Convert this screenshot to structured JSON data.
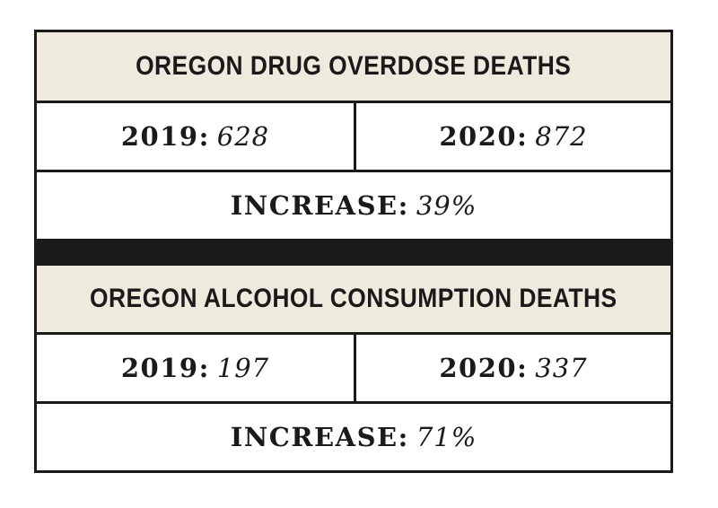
{
  "chart_data": [
    {
      "type": "table",
      "title": "OREGON DRUG OVERDOSE DEATHS",
      "rows": [
        {
          "year_label": "2019:",
          "value": "628"
        },
        {
          "year_label": "2020:",
          "value": "872"
        }
      ],
      "increase_label": "INCREASE:",
      "increase_value": "39%"
    },
    {
      "type": "table",
      "title": "OREGON ALCOHOL CONSUMPTION DEATHS",
      "rows": [
        {
          "year_label": "2019:",
          "value": "197"
        },
        {
          "year_label": "2020:",
          "value": "337"
        }
      ],
      "increase_label": "INCREASE:",
      "increase_value": "71%"
    }
  ],
  "colors": {
    "title_background": "#efeade",
    "border": "#1a1a1a",
    "cell_background": "#ffffff"
  }
}
